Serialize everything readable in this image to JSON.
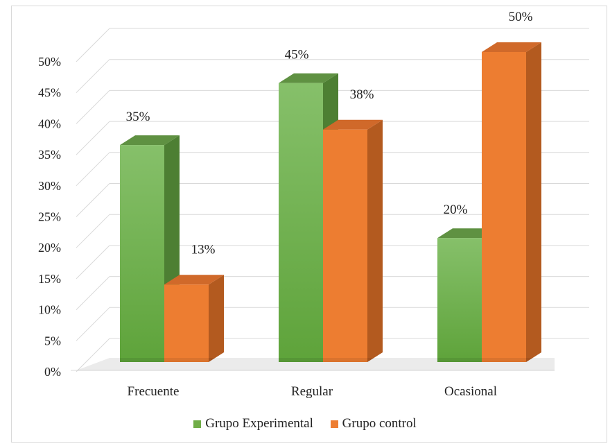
{
  "chart_data": {
    "type": "bar",
    "categories": [
      "Frecuente",
      "Regular",
      "Ocasional"
    ],
    "series": [
      {
        "name": "Grupo Experimental",
        "values": [
          35,
          45,
          20
        ],
        "labels": [
          "35%",
          "45%",
          "20%"
        ],
        "color": "#70ad47"
      },
      {
        "name": "Grupo control",
        "values": [
          12.5,
          37.5,
          50
        ],
        "labels": [
          "13%",
          "38%",
          "50%"
        ],
        "color": "#ed7d31"
      }
    ],
    "ylim": [
      0,
      50
    ],
    "yticks": [
      "0%",
      "5%",
      "10%",
      "15%",
      "20%",
      "25%",
      "30%",
      "35%",
      "40%",
      "45%",
      "50%"
    ],
    "grid": true,
    "legend_position": "bottom",
    "three_d": true
  }
}
